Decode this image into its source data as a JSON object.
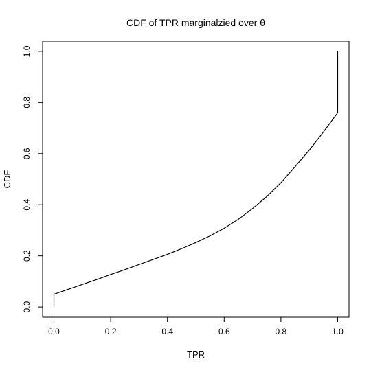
{
  "chart_data": {
    "type": "line",
    "title": "CDF of TPR marginalzied over θ",
    "xlabel": "TPR",
    "ylabel": "CDF",
    "xlim": [
      -0.04,
      1.04
    ],
    "ylim": [
      -0.04,
      1.04
    ],
    "x_ticks": [
      0.0,
      0.2,
      0.4,
      0.6,
      0.8,
      1.0
    ],
    "x_tick_labels": [
      "0.0",
      "0.2",
      "0.4",
      "0.6",
      "0.8",
      "1.0"
    ],
    "y_ticks": [
      0.0,
      0.2,
      0.4,
      0.6,
      0.8,
      1.0
    ],
    "y_tick_labels": [
      "0.0",
      "0.2",
      "0.4",
      "0.6",
      "0.8",
      "1.0"
    ],
    "grid": false,
    "legend": false,
    "series": [
      {
        "x": [
          0.0,
          0.0,
          0.0,
          0.0,
          0.0,
          0.05,
          0.1,
          0.15,
          0.2,
          0.25,
          0.3,
          0.35,
          0.4,
          0.45,
          0.5,
          0.55,
          0.6,
          0.65,
          0.7,
          0.75,
          0.8,
          0.85,
          0.9,
          0.95,
          1.0,
          1.0,
          1.0,
          1.0
        ],
        "y": [
          0.0,
          0.02,
          0.04,
          0.048,
          0.05,
          0.069,
          0.088,
          0.107,
          0.127,
          0.146,
          0.166,
          0.186,
          0.206,
          0.228,
          0.252,
          0.278,
          0.308,
          0.343,
          0.385,
          0.432,
          0.486,
          0.549,
          0.614,
          0.685,
          0.76,
          0.8,
          0.88,
          1.0
        ]
      }
    ]
  }
}
